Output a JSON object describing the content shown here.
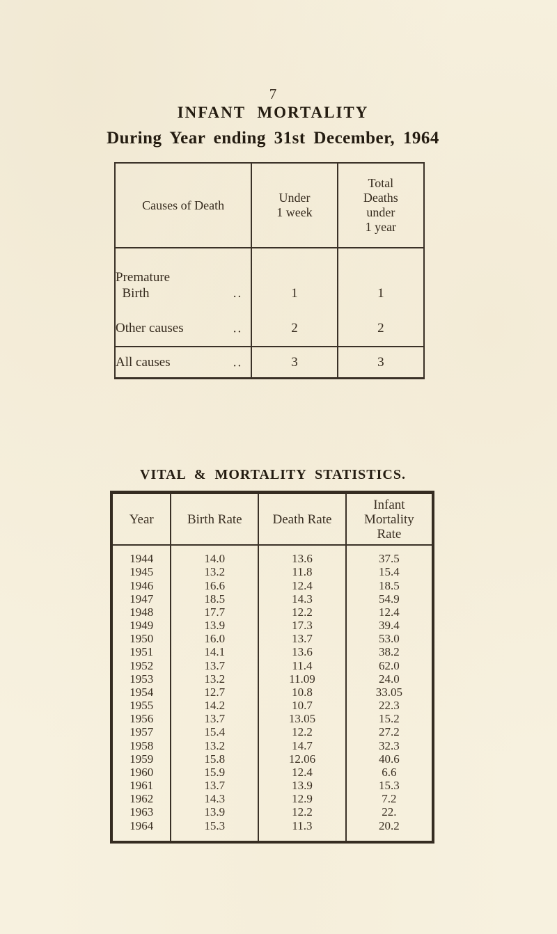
{
  "page": {
    "number": "7",
    "title": "INFANT MORTALITY",
    "subtitle": "During Year ending 31st December, 1964"
  },
  "colors": {
    "paper": "#f7f1df",
    "ink": "#32281c",
    "rule": "#3a3127"
  },
  "infant_table": {
    "col_headers": [
      "Causes of Death",
      "Under\n1 week",
      "Total\nDeaths\nunder\n1  year"
    ],
    "rows": [
      {
        "cause": "Premature\n  Birth",
        "dots": "..",
        "under_1_week": "1",
        "total_under_1_year": "1"
      },
      {
        "cause": "Other causes",
        "dots": "..",
        "under_1_week": "2",
        "total_under_1_year": "2"
      },
      {
        "cause": "All causes",
        "dots": "..",
        "under_1_week": "3",
        "total_under_1_year": "3"
      }
    ]
  },
  "stats_table": {
    "title": "VITAL & MORTALITY STATISTICS.",
    "col_headers": [
      "Year",
      "Birth Rate",
      "Death Rate",
      "Infant\nMortality\nRate"
    ],
    "rows": [
      [
        "1944",
        "14.0",
        "13.6",
        "37.5"
      ],
      [
        "1945",
        "13.2",
        "11.8",
        "15.4"
      ],
      [
        "1946",
        "16.6",
        "12.4",
        "18.5"
      ],
      [
        "1947",
        "18.5",
        "14.3",
        "54.9"
      ],
      [
        "1948",
        "17.7",
        "12.2",
        "12.4"
      ],
      [
        "1949",
        "13.9",
        "17.3",
        "39.4"
      ],
      [
        "1950",
        "16.0",
        "13.7",
        "53.0"
      ],
      [
        "1951",
        "14.1",
        "13.6",
        "38.2"
      ],
      [
        "1952",
        "13.7",
        "11.4",
        "62.0"
      ],
      [
        "1953",
        "13.2",
        "11.09",
        "24.0"
      ],
      [
        "1954",
        "12.7",
        "10.8",
        "33.05"
      ],
      [
        "1955",
        "14.2",
        "10.7",
        "22.3"
      ],
      [
        "1956",
        "13.7",
        "13.05",
        "15.2"
      ],
      [
        "1957",
        "15.4",
        "12.2",
        "27.2"
      ],
      [
        "1958",
        "13.2",
        "14.7",
        "32.3"
      ],
      [
        "1959",
        "15.8",
        "12.06",
        "40.6"
      ],
      [
        "1960",
        "15.9",
        "12.4",
        "6.6"
      ],
      [
        "1961",
        "13.7",
        "13.9",
        "15.3"
      ],
      [
        "1962",
        "14.3",
        "12.9",
        "7.2"
      ],
      [
        "1963",
        "13.9",
        "12.2",
        "22."
      ],
      [
        "1964",
        "15.3",
        "11.3",
        "20.2"
      ]
    ]
  }
}
